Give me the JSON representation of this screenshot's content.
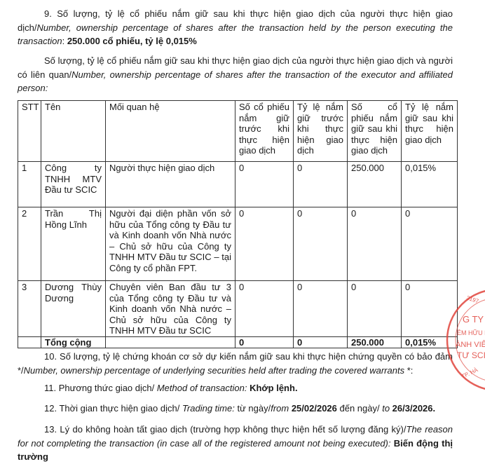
{
  "item9": {
    "prefix": "9. Số lượng, tỷ lệ cổ phiếu nắm giữ sau khi thực hiện giao dịch của người thực hiện giao dịch/",
    "english": "Number, ownership percentage of shares after the transaction held by the person executing the transaction",
    "colon": ": ",
    "value": "250.000 cổ phiếu, tỷ lệ 0,015%"
  },
  "related": {
    "prefix": "Số lượng, tỷ lệ cổ phiếu nắm giữ sau khi thực hiện giao dịch của người thực hiện giao dịch và người có liên quan/",
    "english": "Number, ownership percentage of shares after the transaction of the executor and affiliated person:"
  },
  "table": {
    "headers": [
      "STT",
      "Tên",
      "Mối quan hệ",
      "Số cổ phiếu nắm giữ trước khi thực hiện giao dịch",
      "Tỷ lệ nắm giữ trước khi thực hiện giao dịch",
      "Số cổ phiếu nắm giữ sau khi thực hiện giao dịch",
      "Tỷ lệ nắm giữ sau khi thực hiện giao dịch"
    ],
    "rows": [
      [
        "1",
        "Công ty TNHH MTV Đầu tư SCIC",
        "Người thực hiện giao dịch",
        "0",
        "0",
        "250.000",
        "0,015%"
      ],
      [
        "2",
        "Trần Thị Hồng Lĩnh",
        "Người đại diện phần vốn sở hữu của Tổng công ty Đầu tư và Kinh doanh vốn Nhà nước – Chủ sở hữu của Công ty TNHH MTV Đầu tư SCIC – tại Công ty cổ phần FPT.",
        "0",
        "0",
        "0",
        "0"
      ],
      [
        "3",
        "Dương Thùy Dương",
        "Chuyên viên Ban đầu tư 3 của Tổng công ty Đầu tư và Kinh doanh vốn Nhà nước – Chủ sở hữu của Công ty TNHH MTV Đầu tư SCIC",
        "0",
        "0",
        "0",
        "0"
      ]
    ],
    "total": [
      "",
      "Tổng cộng",
      "",
      "0",
      "0",
      "250.000",
      "0,015%"
    ]
  },
  "item10": {
    "prefix": "10. Số lượng, tỷ lệ chứng khoán cơ sở dự kiến nắm giữ sau khi thực hiện chứng quyền có bảo đảm */",
    "english": "Number, ownership percentage of underlying securities held after trading the covered warrants",
    "suffix": " *:"
  },
  "item11": {
    "prefix": "11. Phương thức giao dịch/ ",
    "english": "Method of transaction:",
    "value": " Khớp lệnh."
  },
  "item12": {
    "prefix": "12. Thời gian thực hiện giao dịch/ ",
    "english": "Trading time:",
    "from_vi": " từ ngày/",
    "from_en": "from",
    "from_date": " 25/02/2026",
    "to_vi": " đến ngày/ ",
    "to_en": "to",
    "to_date": " 26/3/2026."
  },
  "item13": {
    "prefix": "13. Lý do không hoàn tất giao dịch (trường hợp không thực hiện hết số lượng đăng ký)/",
    "english": "The reason for not completing the transaction (in case all of the registered amount not being executed):",
    "value": " Biến động thị trường"
  },
  "stamp": {
    "color": "#e0443c",
    "text": [
      "3197",
      "G TY",
      "ÊM HỮU H",
      "ÀNH VIÊ",
      "TƯ SCIC",
      "TP. HÀ"
    ]
  }
}
